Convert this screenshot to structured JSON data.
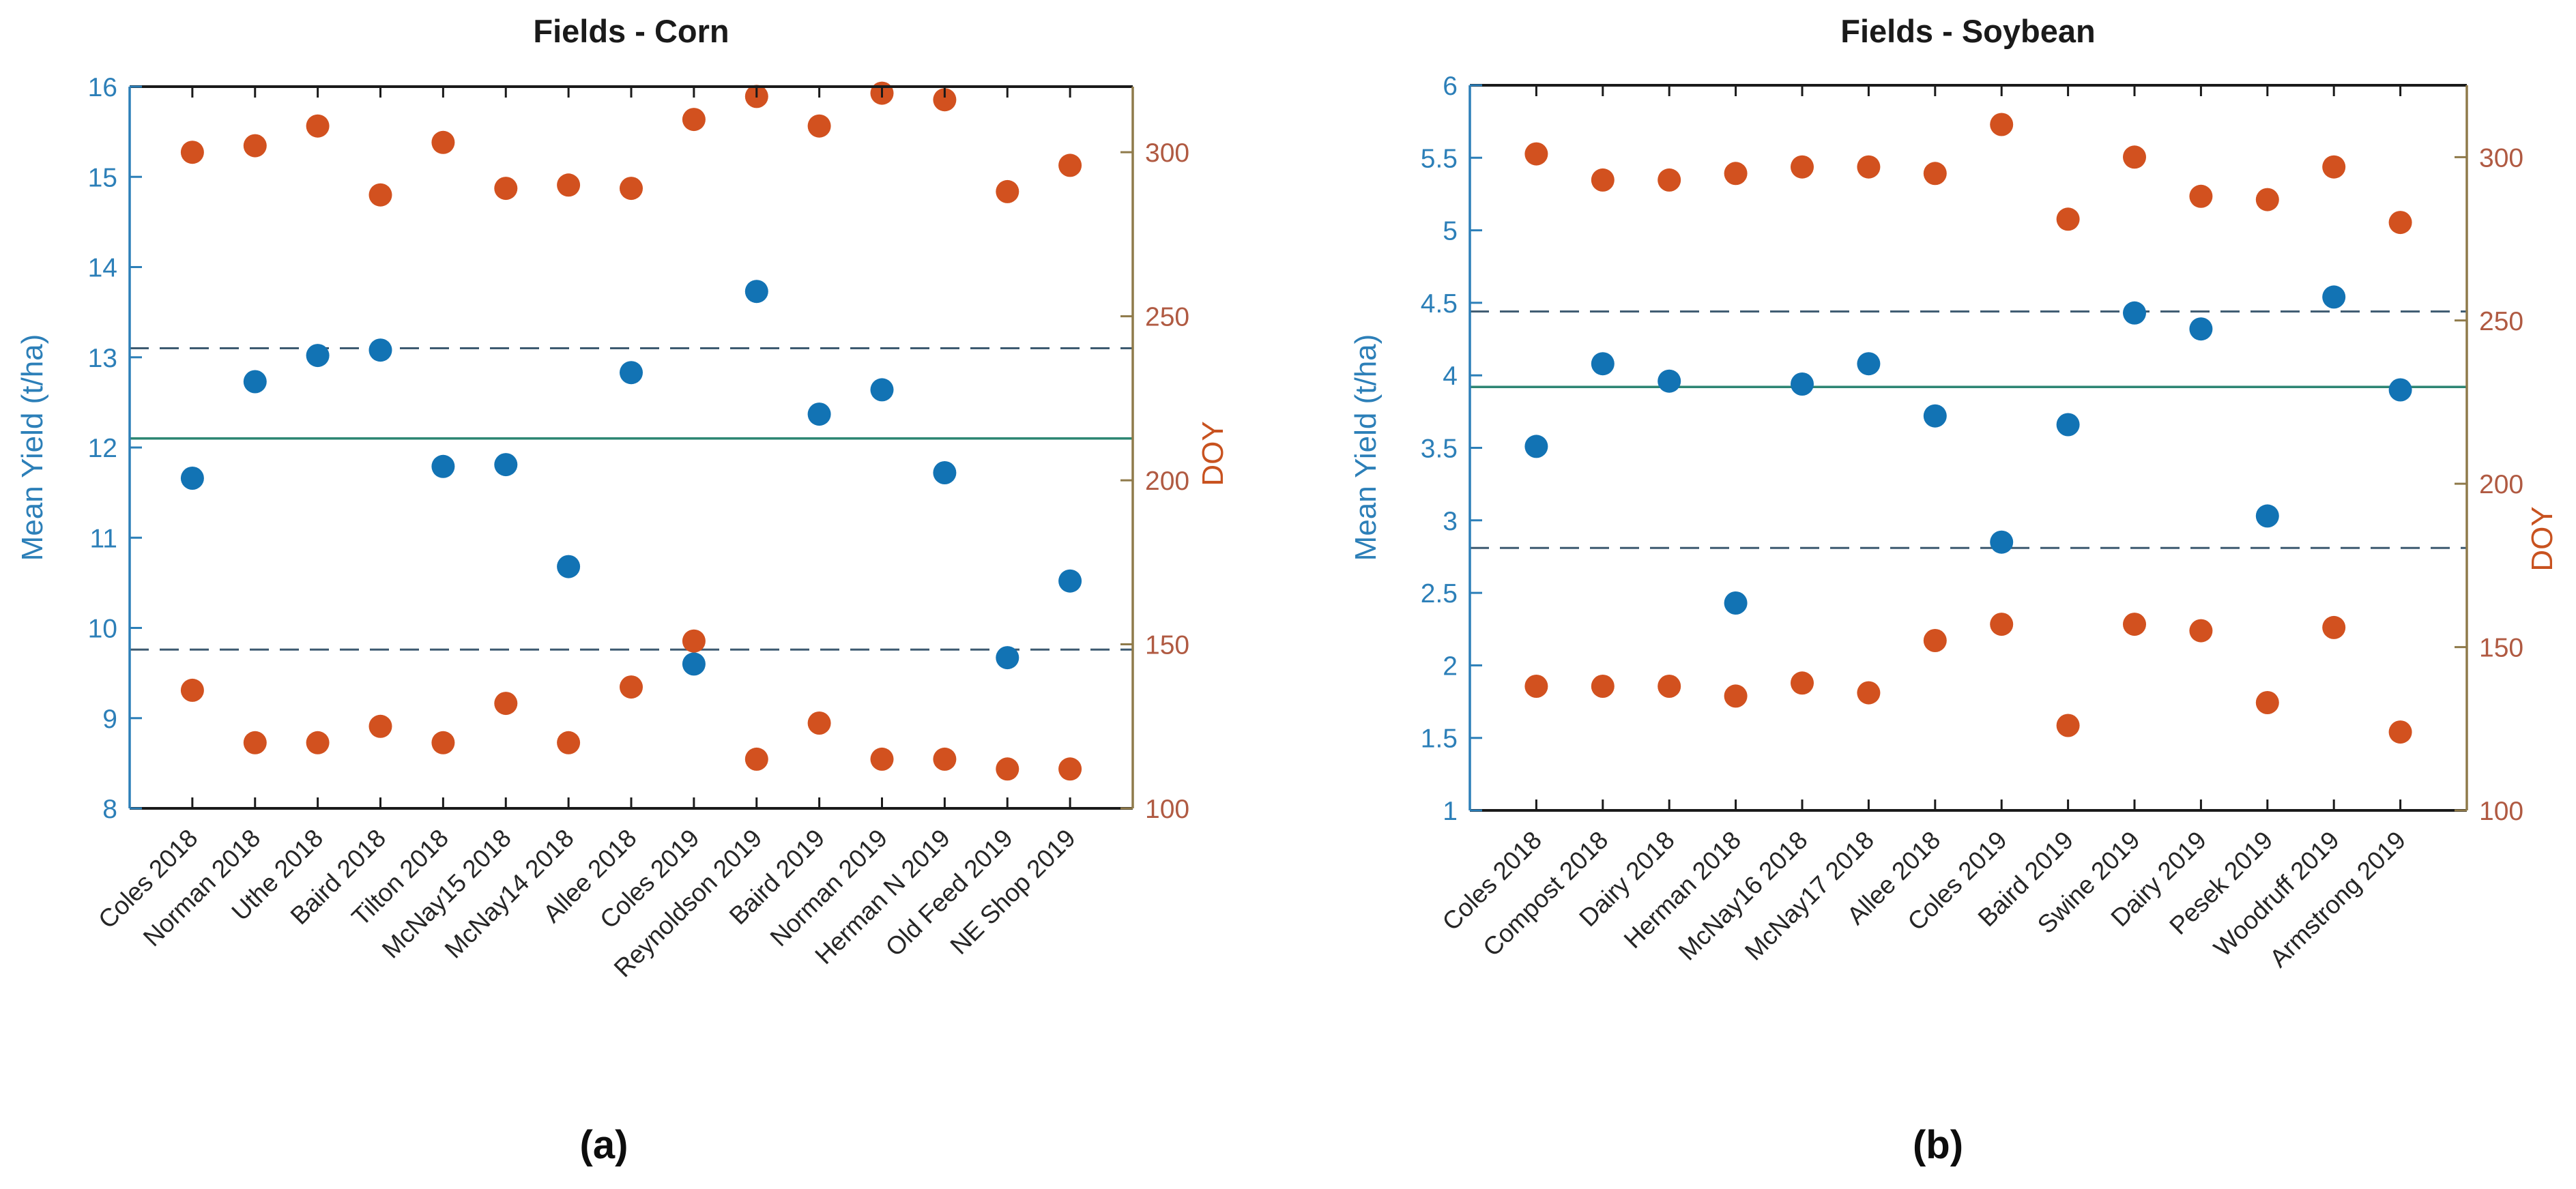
{
  "figure": {
    "captions": [
      "(a)",
      "(b)"
    ],
    "background": "#ffffff"
  },
  "colors": {
    "blue_point": "#1273b4",
    "orange_point": "#d2511f",
    "left_axis": "#2c7fb8",
    "right_tick_label": "#b05a42",
    "right_axis_line": "#8f7a4a",
    "right_label": "#c8521f",
    "solid_line": "#2d8673",
    "dashed_line": "#3d5a70",
    "dark_axis": "#1a1a1a"
  },
  "chart_data": [
    {
      "id": "corn",
      "type": "scatter",
      "title": "Fields - Corn",
      "ylabel_left": "Mean Yield (t/ha)",
      "ylabel_right": "DOY",
      "grid": false,
      "legend": "none",
      "categories": [
        "Coles 2018",
        "Norman 2018",
        "Uthe 2018",
        "Baird 2018",
        "Tilton 2018",
        "McNay15 2018",
        "McNay14 2018",
        "Allee 2018",
        "Coles 2019",
        "Reynoldson 2019",
        "Baird 2019",
        "Norman 2019",
        "Herman N 2019",
        "Old Feed 2019",
        "NE Shop 2019"
      ],
      "ylim_left": [
        8,
        16
      ],
      "ylim_right": [
        100,
        320
      ],
      "yticks_left": {
        "values": [
          8,
          9,
          10,
          11,
          12,
          13,
          14,
          15,
          16
        ],
        "labels": [
          "8",
          "9",
          "10",
          "11",
          "12",
          "13",
          "14",
          "15",
          "16"
        ]
      },
      "yticks_right": {
        "values": [
          100,
          150,
          200,
          250,
          300
        ],
        "labels": [
          "100",
          "150",
          "200",
          "250",
          "300"
        ]
      },
      "ref_lines": {
        "solid": 12.1,
        "dashed": [
          13.1,
          9.76
        ]
      },
      "series": [
        {
          "key": "yield",
          "axis": "left",
          "color_key": "blue_point",
          "values": [
            11.66,
            12.73,
            13.02,
            13.08,
            11.79,
            11.81,
            10.68,
            12.83,
            9.6,
            13.73,
            12.37,
            12.64,
            11.72,
            9.67,
            10.52
          ]
        },
        {
          "key": "doy-high",
          "axis": "right",
          "color_key": "orange_point",
          "values": [
            300,
            302,
            308,
            287,
            303,
            289,
            290,
            289,
            310,
            317,
            308,
            318,
            316,
            288,
            296
          ]
        },
        {
          "key": "doy-low",
          "axis": "right",
          "color_key": "orange_point",
          "values": [
            136,
            120,
            120,
            125,
            120,
            132,
            120,
            137,
            151,
            115,
            126,
            115,
            115,
            112,
            112
          ]
        }
      ]
    },
    {
      "id": "soybean",
      "type": "scatter",
      "title": "Fields - Soybean",
      "ylabel_left": "Mean Yield (t/ha)",
      "ylabel_right": "DOY",
      "grid": false,
      "legend": "none",
      "categories": [
        "Coles 2018",
        "Compost 2018",
        "Dairy 2018",
        "Herman 2018",
        "McNay16 2018",
        "McNay17 2018",
        "Allee 2018",
        "Coles 2019",
        "Baird 2019",
        "Swine 2019",
        "Dairy 2019",
        "Pesek 2019",
        "Woodruff 2019",
        "Armstrong 2019"
      ],
      "ylim_left": [
        1,
        6
      ],
      "ylim_right": [
        100,
        322
      ],
      "yticks_left": {
        "values": [
          1,
          1.5,
          2,
          2.5,
          3,
          3.5,
          4,
          4.5,
          5,
          5.5,
          6
        ],
        "labels": [
          "1",
          "1.5",
          "2",
          "2.5",
          "3",
          "3.5",
          "4",
          "4.5",
          "5",
          "5.5",
          "6"
        ]
      },
      "yticks_right": {
        "values": [
          100,
          150,
          200,
          250,
          300
        ],
        "labels": [
          "100",
          "150",
          "200",
          "250",
          "300"
        ]
      },
      "ref_lines": {
        "solid": 3.92,
        "dashed": [
          4.44,
          2.81
        ]
      },
      "series": [
        {
          "key": "yield",
          "axis": "left",
          "color_key": "blue_point",
          "values": [
            3.51,
            4.08,
            3.96,
            2.43,
            3.94,
            4.08,
            3.72,
            2.85,
            3.66,
            4.43,
            4.32,
            3.03,
            4.54,
            3.9
          ]
        },
        {
          "key": "doy-high",
          "axis": "right",
          "color_key": "orange_point",
          "values": [
            301,
            293,
            293,
            295,
            297,
            297,
            295,
            310,
            281,
            300,
            288,
            287,
            297,
            280
          ]
        },
        {
          "key": "doy-low",
          "axis": "right",
          "color_key": "orange_point",
          "values": [
            138,
            138,
            138,
            135,
            139,
            136,
            152,
            157,
            126,
            157,
            155,
            133,
            156,
            124
          ]
        }
      ]
    }
  ]
}
